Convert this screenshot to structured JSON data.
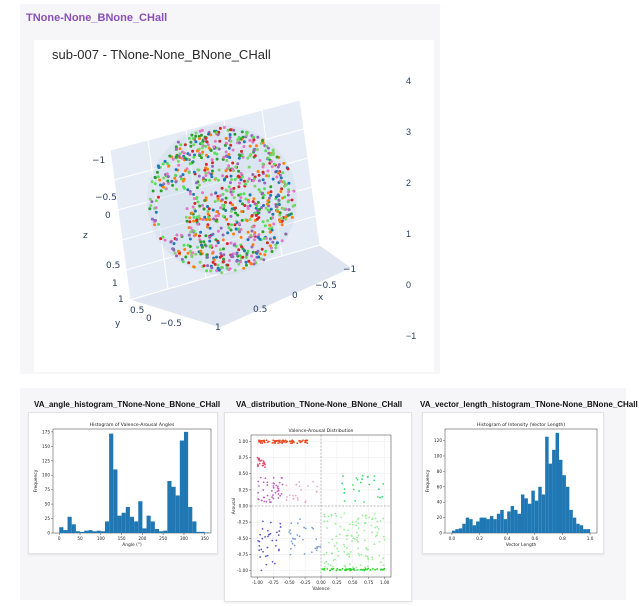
{
  "header": {
    "title": "TNone-None_BNone_CHall"
  },
  "scatter3d": {
    "title": "sub-007 - TNone-None_BNone_CHall",
    "colorbar_ticks": [
      "4",
      "3",
      "2",
      "1",
      "0",
      "−1"
    ],
    "z_label": "z",
    "x_label": "x",
    "y_label": "y",
    "z_ticks": [
      "−1",
      "−0.5",
      "0",
      "0.5",
      "1"
    ],
    "x_ticks": [
      "−1",
      "−0.5",
      "0",
      "0.5",
      "1"
    ],
    "y_ticks": [
      "1",
      "0.5",
      "0",
      "−0.5"
    ]
  },
  "panels": {
    "angle": {
      "heading": "VA_angle_histogram_TNone-None_BNone_CHall",
      "chart_title": "Histogram of Valence-Arousal Angles",
      "xlabel": "Angle (°)",
      "ylabel": "Frequency"
    },
    "dist": {
      "heading": "VA_distribution_TNone-None_BNone_CHall",
      "chart_title": "Valence-Arousal Distribution",
      "xlabel": "Valence",
      "ylabel": "Arousal"
    },
    "length": {
      "heading": "VA_vector_length_histogram_TNone-None_BNone_CHall",
      "chart_title": "Histogram of Intensity (Vector Length)",
      "xlabel": "Vector Length",
      "ylabel": "Frequency"
    }
  },
  "colors": {
    "bar": "#1f77b4",
    "title_accent": "#8a4fb8",
    "scene_bg": "#e5ecf6"
  },
  "chart_data": [
    {
      "type": "bar",
      "title": "Histogram of Valence-Arousal Angles",
      "xlabel": "Angle (°)",
      "ylabel": "Frequency",
      "bin_start": 0,
      "bin_width": 10,
      "xlim": [
        -15,
        365
      ],
      "ylim": [
        0,
        180
      ],
      "xticks": [
        0,
        50,
        100,
        150,
        200,
        250,
        300,
        350
      ],
      "yticks": [
        0,
        25,
        50,
        75,
        100,
        125,
        150,
        175
      ],
      "values": [
        10,
        5,
        28,
        15,
        3,
        2,
        4,
        5,
        3,
        4,
        3,
        20,
        172,
        110,
        30,
        35,
        45,
        28,
        20,
        55,
        8,
        30,
        20,
        7,
        3,
        4,
        90,
        80,
        65,
        160,
        175,
        45,
        20,
        2,
        2,
        1
      ]
    },
    {
      "type": "scatter",
      "title": "Valence-Arousal Distribution",
      "xlabel": "Valence",
      "ylabel": "Arousal",
      "xlim": [
        -1.1,
        1.1
      ],
      "ylim": [
        -1.1,
        1.1
      ],
      "xticks": [
        -1.0,
        -0.75,
        -0.5,
        -0.25,
        0.0,
        0.25,
        0.5,
        0.75,
        1.0
      ],
      "yticks": [
        -1.0,
        -0.75,
        -0.5,
        -0.25,
        0.0,
        0.25,
        0.5,
        0.75,
        1.0
      ],
      "grid": true,
      "clusters": [
        {
          "name": "top-left",
          "color": "#e8481e",
          "x": [
            -0.98,
            -0.2
          ],
          "y": [
            0.97,
            1.02
          ],
          "n": 70
        },
        {
          "name": "upper-left",
          "color": "#e64b6e",
          "x": [
            -1.0,
            -0.88
          ],
          "y": [
            0.6,
            0.75
          ],
          "n": 20
        },
        {
          "name": "mid-left",
          "color": "#c060c0",
          "x": [
            -1.0,
            -0.6
          ],
          "y": [
            0.05,
            0.45
          ],
          "n": 45
        },
        {
          "name": "mid-left-light",
          "color": "#e8a8c8",
          "x": [
            -0.55,
            -0.05
          ],
          "y": [
            0.05,
            0.4
          ],
          "n": 20
        },
        {
          "name": "lower-left",
          "color": "#5a5ad0",
          "x": [
            -1.0,
            -0.6
          ],
          "y": [
            -1.0,
            -0.2
          ],
          "n": 35
        },
        {
          "name": "lower-center",
          "color": "#7aa0d8",
          "x": [
            -0.5,
            0.0
          ],
          "y": [
            -0.8,
            -0.2
          ],
          "n": 30
        },
        {
          "name": "upper-right",
          "color": "#3adc6a",
          "x": [
            0.3,
            1.0
          ],
          "y": [
            0.05,
            0.5
          ],
          "n": 25
        },
        {
          "name": "lower-right",
          "color": "#98f098",
          "x": [
            0.05,
            1.0
          ],
          "y": [
            -1.0,
            -0.1
          ],
          "n": 130
        },
        {
          "name": "bottom-right",
          "color": "#2ad42a",
          "x": [
            0.0,
            1.0
          ],
          "y": [
            -1.0,
            -0.97
          ],
          "n": 50
        }
      ]
    },
    {
      "type": "bar",
      "title": "Histogram of Intensity (Vector Length)",
      "xlabel": "Vector Length",
      "ylabel": "Frequency",
      "bin_start": 0.0,
      "bin_width": 0.025,
      "xlim": [
        -0.05,
        1.05
      ],
      "ylim": [
        0,
        135
      ],
      "xticks": [
        0.0,
        0.2,
        0.4,
        0.6,
        0.8,
        1.0
      ],
      "yticks": [
        0,
        20,
        40,
        60,
        80,
        100,
        120
      ],
      "values": [
        3,
        5,
        6,
        12,
        20,
        18,
        10,
        15,
        20,
        20,
        18,
        22,
        18,
        25,
        30,
        18,
        28,
        35,
        30,
        25,
        50,
        45,
        38,
        55,
        42,
        60,
        50,
        125,
        90,
        108,
        130,
        95,
        75,
        60,
        30,
        20,
        12,
        10,
        5,
        5
      ]
    }
  ]
}
